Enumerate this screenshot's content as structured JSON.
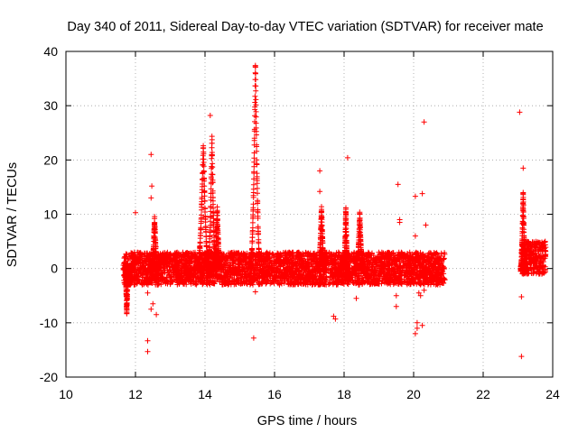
{
  "chart_data": {
    "type": "scatter",
    "title": "Day 340 of 2011, Sidereal Day-to-day VTEC variation (SDTVAR) for receiver mate",
    "xlabel": "GPS time / hours",
    "ylabel": "SDTVAR / TECUs",
    "xlim": [
      10,
      24
    ],
    "ylim": [
      -20,
      40
    ],
    "xticks": [
      10,
      12,
      14,
      16,
      18,
      20,
      22,
      24
    ],
    "yticks": [
      -20,
      -10,
      0,
      10,
      20,
      30,
      40
    ],
    "xtick_labels": [
      "10",
      "12",
      "14",
      "16",
      "18",
      "20",
      "22",
      "24"
    ],
    "ytick_labels": [
      "-20",
      "-10",
      "0",
      "10",
      "20",
      "30",
      "40"
    ],
    "grid": true,
    "marker": "+",
    "color": "#ff0000",
    "band_segments": [
      {
        "x_start": 11.65,
        "x_end": 20.9,
        "y_low": -3,
        "y_high": 3
      },
      {
        "x_start": 23.1,
        "x_end": 23.8,
        "y_low": -1,
        "y_high": 5
      }
    ],
    "spikes": [
      {
        "x": 11.75,
        "peak": -8,
        "width": 0.12
      },
      {
        "x": 12.55,
        "peak": 9,
        "width": 0.2
      },
      {
        "x": 13.95,
        "peak": 23,
        "width": 0.35
      },
      {
        "x": 14.2,
        "peak": 24,
        "width": 0.25
      },
      {
        "x": 14.35,
        "peak": 11,
        "width": 0.2
      },
      {
        "x": 15.45,
        "peak": 38,
        "width": 0.3
      },
      {
        "x": 17.35,
        "peak": 11,
        "width": 0.2
      },
      {
        "x": 18.05,
        "peak": 11,
        "width": 0.12
      },
      {
        "x": 18.45,
        "peak": 10,
        "width": 0.2
      },
      {
        "x": 23.15,
        "peak": 14,
        "width": 0.15
      }
    ],
    "outliers": [
      {
        "x": 12.0,
        "y": 10.3
      },
      {
        "x": 12.45,
        "y": 21
      },
      {
        "x": 12.47,
        "y": 15.2
      },
      {
        "x": 12.45,
        "y": 13
      },
      {
        "x": 12.35,
        "y": -13.3
      },
      {
        "x": 12.35,
        "y": -15.3
      },
      {
        "x": 12.5,
        "y": -6.5
      },
      {
        "x": 12.45,
        "y": -7.5
      },
      {
        "x": 12.6,
        "y": -8.5
      },
      {
        "x": 12.35,
        "y": -4.5
      },
      {
        "x": 14.15,
        "y": 28.2
      },
      {
        "x": 14.25,
        "y": 8.5
      },
      {
        "x": 15.4,
        "y": -12.8
      },
      {
        "x": 15.45,
        "y": -4.3
      },
      {
        "x": 17.3,
        "y": 18
      },
      {
        "x": 17.3,
        "y": 14.2
      },
      {
        "x": 17.7,
        "y": -8.8
      },
      {
        "x": 17.75,
        "y": -9.3
      },
      {
        "x": 18.1,
        "y": 20.4
      },
      {
        "x": 18.35,
        "y": -5.5
      },
      {
        "x": 19.5,
        "y": -5
      },
      {
        "x": 19.5,
        "y": -7
      },
      {
        "x": 19.55,
        "y": 15.5
      },
      {
        "x": 19.6,
        "y": 9
      },
      {
        "x": 19.6,
        "y": 8.5
      },
      {
        "x": 20.05,
        "y": 13.3
      },
      {
        "x": 20.05,
        "y": 6
      },
      {
        "x": 20.25,
        "y": 13.8
      },
      {
        "x": 20.3,
        "y": 27
      },
      {
        "x": 20.35,
        "y": 8
      },
      {
        "x": 20.1,
        "y": -10
      },
      {
        "x": 20.1,
        "y": -11
      },
      {
        "x": 20.05,
        "y": -12
      },
      {
        "x": 20.25,
        "y": -10.5
      },
      {
        "x": 20.15,
        "y": -4.5
      },
      {
        "x": 20.2,
        "y": -5
      },
      {
        "x": 20.3,
        "y": -4
      },
      {
        "x": 23.05,
        "y": 28.8
      },
      {
        "x": 23.1,
        "y": -16.2
      },
      {
        "x": 23.15,
        "y": 18.5
      },
      {
        "x": 23.1,
        "y": -5.2
      },
      {
        "x": 23.1,
        "y": 3
      },
      {
        "x": 23.15,
        "y": -1
      }
    ]
  }
}
